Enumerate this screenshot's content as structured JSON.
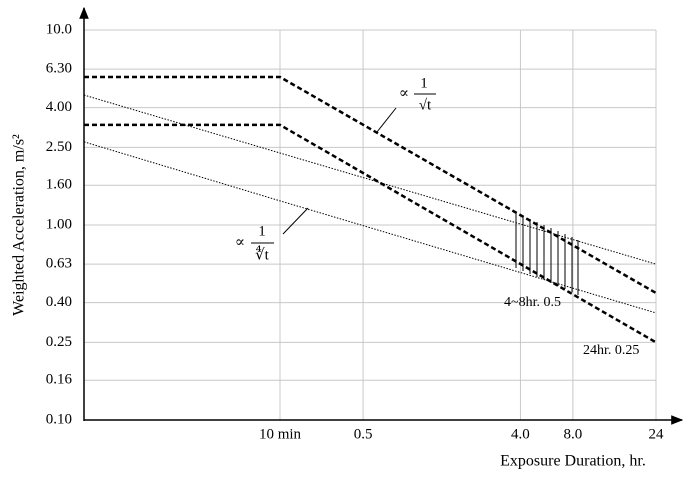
{
  "chart_data": {
    "type": "line",
    "x_label": "Exposure Duration, hr.",
    "y_label": "Weighted Acceleration, m/s²",
    "x": [
      0.0125,
      0.1667,
      24
    ],
    "series": [
      {
        "color": "#000000",
        "dash": "dashed",
        "values": [
          5.74,
          5.74,
          0.448
        ]
      },
      {
        "color": "#000000",
        "dash": "dashed",
        "values": [
          3.26,
          3.26,
          0.25
        ]
      },
      {
        "color": "#000000",
        "dash": "dotted",
        "values": [
          4.64,
          2.34,
          0.63
        ]
      },
      {
        "color": "#000000",
        "dash": "dotted",
        "values": [
          2.67,
          1.33,
          0.354
        ]
      }
    ],
    "xscale": "log",
    "yscale": "log",
    "xlim": [
      0.0125,
      24
    ],
    "ylim": [
      0.1,
      10
    ],
    "xticks": [
      {
        "value": 0.1667,
        "label": "10 min"
      },
      0.5,
      {
        "value": 4,
        "label": "4.0"
      },
      {
        "value": 8,
        "label": "8.0"
      },
      24
    ],
    "yticks": [
      {
        "value": 0.1,
        "label": "0.10"
      },
      0.16,
      0.25,
      {
        "value": 0.4,
        "label": "0.40"
      },
      0.63,
      {
        "value": 1,
        "label": "1.00"
      },
      {
        "value": 1.6,
        "label": "1.60"
      },
      {
        "value": 2.5,
        "label": "2.50"
      },
      {
        "value": 4,
        "label": "4.00"
      },
      {
        "value": 6.3,
        "label": "6.30"
      },
      {
        "value": 10,
        "label": "10.0"
      }
    ],
    "grid": true,
    "annotations": [
      {
        "symbol": "∝",
        "numerator": "1",
        "denominator": "√t"
      },
      {
        "symbol": "∝",
        "numerator": "1",
        "denominator": "∜t"
      },
      {
        "text": "4~8hr. 0.5"
      },
      {
        "text": "24hr. 0.25"
      }
    ]
  }
}
